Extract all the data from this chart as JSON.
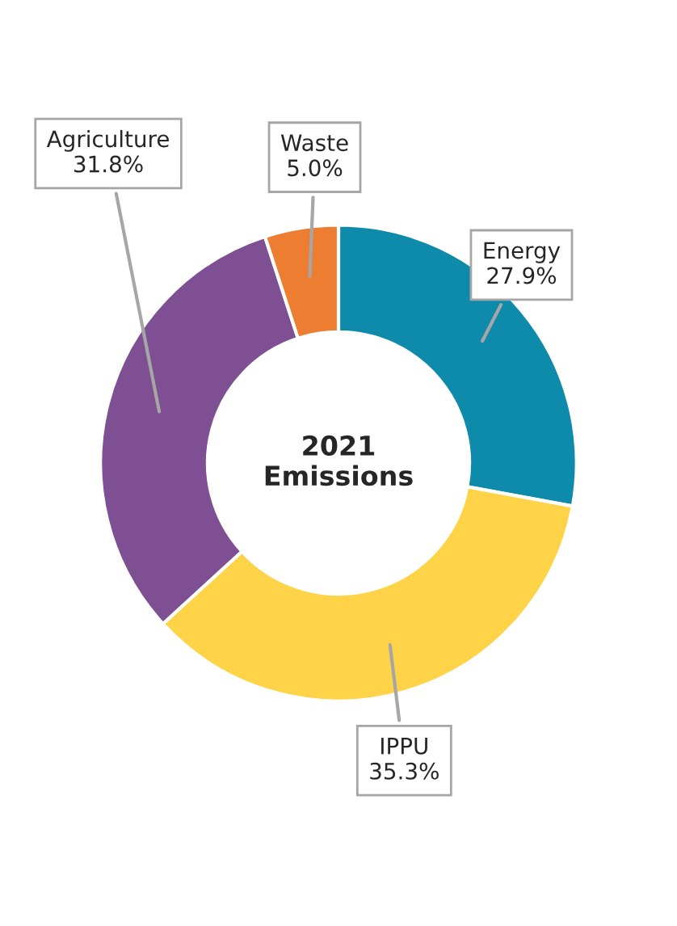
{
  "chart_data": {
    "type": "donut",
    "title": "2021\nEmissions",
    "categories": [
      "Energy",
      "IPPU",
      "Agriculture",
      "Waste"
    ],
    "values": [
      27.9,
      35.3,
      31.8,
      5.0
    ],
    "colors": [
      "#0e8aab",
      "#ffd347",
      "#7f4f93",
      "#ed7d31"
    ],
    "value_labels": [
      "27.9%",
      "35.3%",
      "31.8%",
      "5.0%"
    ],
    "legend": false
  }
}
